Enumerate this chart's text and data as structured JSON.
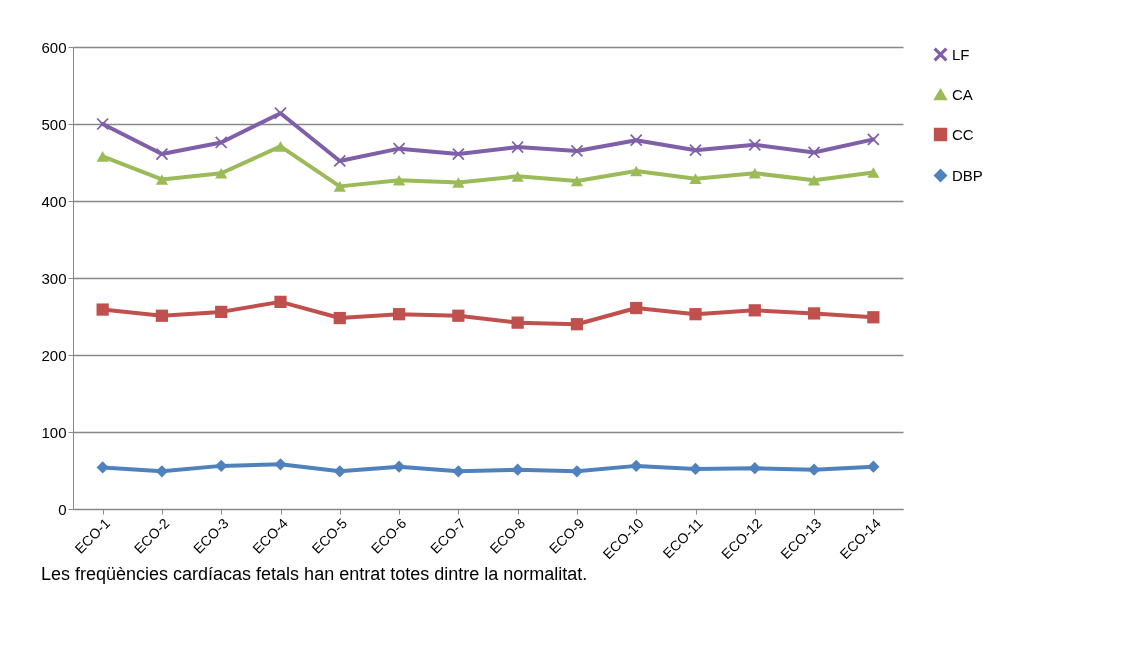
{
  "chart_data": {
    "type": "line",
    "categories": [
      "ECO-1",
      "ECO-2",
      "ECO-3",
      "ECO-4",
      "ECO-5",
      "ECO-6",
      "ECO-7",
      "ECO-8",
      "ECO-9",
      "ECO-10",
      "ECO-11",
      "ECO-12",
      "ECO-13",
      "ECO-14"
    ],
    "series": [
      {
        "name": "LF",
        "color": "#7f5fa8",
        "marker": "cross",
        "values": [
          500,
          461,
          476,
          514,
          452,
          468,
          461,
          470,
          465,
          479,
          466,
          473,
          463,
          480
        ]
      },
      {
        "name": "CA",
        "color": "#9bbb59",
        "marker": "triangle",
        "values": [
          458,
          428,
          436,
          471,
          419,
          427,
          424,
          432,
          426,
          439,
          429,
          436,
          427,
          437
        ]
      },
      {
        "name": "CC",
        "color": "#c0504d",
        "marker": "square",
        "values": [
          259,
          251,
          256,
          269,
          248,
          253,
          251,
          242,
          240,
          261,
          253,
          258,
          254,
          249
        ]
      },
      {
        "name": "DBP",
        "color": "#4f81bd",
        "marker": "diamond",
        "values": [
          54,
          49,
          56,
          58,
          49,
          55,
          49,
          51,
          49,
          56,
          52,
          53,
          51,
          55
        ]
      }
    ],
    "ylim": [
      0,
      600
    ],
    "yticks": [
      0,
      100,
      200,
      300,
      400,
      500,
      600
    ],
    "grid": "y",
    "legend": "right",
    "annotations": [
      "Les freqüències cardíacas fetals han entrat totes dintre la normalitat."
    ]
  }
}
